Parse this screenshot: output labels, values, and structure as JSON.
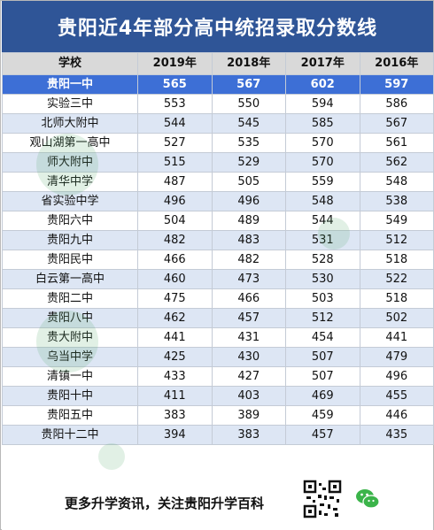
{
  "title": "贵阳近4年部分高中统招录取分数线",
  "table": {
    "headers": [
      "学校",
      "2019年",
      "2018年",
      "2017年",
      "2016年"
    ],
    "rows": [
      {
        "school": "贵阳一中",
        "y2019": "565",
        "y2018": "567",
        "y2017": "602",
        "y2016": "597"
      },
      {
        "school": "实验三中",
        "y2019": "553",
        "y2018": "550",
        "y2017": "594",
        "y2016": "586"
      },
      {
        "school": "北师大附中",
        "y2019": "544",
        "y2018": "545",
        "y2017": "585",
        "y2016": "567"
      },
      {
        "school": "观山湖第一高中",
        "y2019": "527",
        "y2018": "535",
        "y2017": "570",
        "y2016": "561"
      },
      {
        "school": "师大附中",
        "y2019": "515",
        "y2018": "529",
        "y2017": "570",
        "y2016": "562"
      },
      {
        "school": "清华中学",
        "y2019": "487",
        "y2018": "505",
        "y2017": "559",
        "y2016": "548"
      },
      {
        "school": "省实验中学",
        "y2019": "496",
        "y2018": "496",
        "y2017": "548",
        "y2016": "538"
      },
      {
        "school": "贵阳六中",
        "y2019": "504",
        "y2018": "489",
        "y2017": "544",
        "y2016": "549"
      },
      {
        "school": "贵阳九中",
        "y2019": "482",
        "y2018": "483",
        "y2017": "531",
        "y2016": "512"
      },
      {
        "school": "贵阳民中",
        "y2019": "466",
        "y2018": "482",
        "y2017": "528",
        "y2016": "518"
      },
      {
        "school": "白云第一高中",
        "y2019": "460",
        "y2018": "473",
        "y2017": "530",
        "y2016": "522"
      },
      {
        "school": "贵阳二中",
        "y2019": "475",
        "y2018": "466",
        "y2017": "503",
        "y2016": "518"
      },
      {
        "school": "贵阳八中",
        "y2019": "462",
        "y2018": "457",
        "y2017": "512",
        "y2016": "502"
      },
      {
        "school": "贵大附中",
        "y2019": "441",
        "y2018": "431",
        "y2017": "454",
        "y2016": "441"
      },
      {
        "school": "乌当中学",
        "y2019": "425",
        "y2018": "430",
        "y2017": "507",
        "y2016": "479"
      },
      {
        "school": "清镇一中",
        "y2019": "433",
        "y2018": "427",
        "y2017": "507",
        "y2016": "496"
      },
      {
        "school": "贵阳十中",
        "y2019": "411",
        "y2018": "403",
        "y2017": "469",
        "y2016": "455"
      },
      {
        "school": "贵阳五中",
        "y2019": "383",
        "y2018": "389",
        "y2017": "459",
        "y2016": "446"
      },
      {
        "school": "贵阳十二中",
        "y2019": "394",
        "y2018": "383",
        "y2017": "457",
        "y2016": "435"
      }
    ]
  },
  "footer": {
    "text": "更多升学资讯，关注贵阳升学百科",
    "qr_icon": "qr-code-icon",
    "wechat_icon": "wechat-icon"
  },
  "colors": {
    "title_bg": "#2f5597",
    "highlight_row": "#3d6fd6",
    "stripe": "#dde6f4",
    "header_bg": "#d9d9d9"
  }
}
